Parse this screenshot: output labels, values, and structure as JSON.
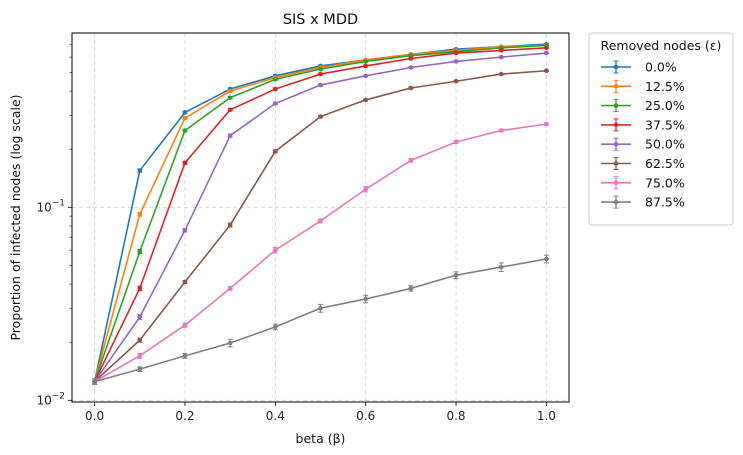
{
  "chart_data": {
    "type": "line",
    "title": "SIS x MDD",
    "xlabel": "beta (β)",
    "ylabel": "Proportion of infected nodes (log scale)",
    "yscale": "log",
    "xlim": [
      -0.05,
      1.05
    ],
    "ylim": [
      0.0098,
      0.8
    ],
    "grid": true,
    "x": [
      0.0,
      0.1,
      0.2,
      0.3,
      0.4,
      0.5,
      0.6,
      0.7,
      0.8,
      0.9,
      1.0
    ],
    "x_ticks": [
      "0.0",
      "0.2",
      "0.4",
      "0.6",
      "0.8",
      "1.0"
    ],
    "y_ticks": [
      {
        "base": "10",
        "exp": "−2"
      },
      {
        "base": "10",
        "exp": "−1"
      }
    ],
    "legend": {
      "title": "Removed nodes (ε)",
      "placement": "outside-right"
    },
    "series": [
      {
        "name": "0.0%",
        "color": "#1f77b4",
        "values": [
          0.0125,
          0.155,
          0.31,
          0.41,
          0.48,
          0.54,
          0.58,
          0.62,
          0.66,
          0.68,
          0.7
        ],
        "errors": [
          0.0004,
          0.003,
          0.004,
          0.005,
          0.005,
          0.005,
          0.005,
          0.005,
          0.005,
          0.005,
          0.005
        ]
      },
      {
        "name": "12.5%",
        "color": "#ff7f0e",
        "values": [
          0.0125,
          0.092,
          0.29,
          0.4,
          0.47,
          0.53,
          0.58,
          0.62,
          0.65,
          0.68,
          0.69
        ],
        "errors": [
          0.0004,
          0.002,
          0.004,
          0.005,
          0.005,
          0.005,
          0.005,
          0.005,
          0.005,
          0.005,
          0.005
        ]
      },
      {
        "name": "25.0%",
        "color": "#2ca02c",
        "values": [
          0.0125,
          0.059,
          0.25,
          0.37,
          0.46,
          0.52,
          0.57,
          0.61,
          0.64,
          0.67,
          0.69
        ],
        "errors": [
          0.0004,
          0.0015,
          0.004,
          0.005,
          0.005,
          0.005,
          0.005,
          0.005,
          0.005,
          0.005,
          0.005
        ]
      },
      {
        "name": "37.5%",
        "color": "#d62728",
        "values": [
          0.0125,
          0.038,
          0.17,
          0.32,
          0.41,
          0.49,
          0.54,
          0.59,
          0.63,
          0.65,
          0.67
        ],
        "errors": [
          0.0004,
          0.001,
          0.003,
          0.004,
          0.005,
          0.005,
          0.005,
          0.005,
          0.005,
          0.005,
          0.005
        ]
      },
      {
        "name": "50.0%",
        "color": "#9467bd",
        "values": [
          0.0125,
          0.027,
          0.076,
          0.235,
          0.345,
          0.43,
          0.48,
          0.53,
          0.57,
          0.6,
          0.63
        ],
        "errors": [
          0.0004,
          0.0008,
          0.0015,
          0.004,
          0.005,
          0.005,
          0.005,
          0.005,
          0.005,
          0.005,
          0.005
        ]
      },
      {
        "name": "62.5%",
        "color": "#8c564b",
        "values": [
          0.0125,
          0.0205,
          0.041,
          0.081,
          0.195,
          0.295,
          0.36,
          0.415,
          0.45,
          0.49,
          0.51
        ],
        "errors": [
          0.0004,
          0.0005,
          0.0008,
          0.002,
          0.003,
          0.004,
          0.004,
          0.004,
          0.004,
          0.004,
          0.004
        ]
      },
      {
        "name": "75.0%",
        "color": "#e377c2",
        "values": [
          0.0125,
          0.017,
          0.0245,
          0.038,
          0.06,
          0.085,
          0.124,
          0.175,
          0.218,
          0.25,
          0.27
        ],
        "errors": [
          0.0004,
          0.0005,
          0.0006,
          0.0008,
          0.002,
          0.002,
          0.004,
          0.004,
          0.004,
          0.004,
          0.004
        ]
      },
      {
        "name": "87.5%",
        "color": "#7f7f7f",
        "values": [
          0.0125,
          0.0145,
          0.017,
          0.0198,
          0.024,
          0.03,
          0.0335,
          0.038,
          0.0445,
          0.049,
          0.054
        ],
        "errors": [
          0.0004,
          0.0004,
          0.0005,
          0.0009,
          0.0008,
          0.0014,
          0.0015,
          0.0012,
          0.0018,
          0.0025,
          0.0025
        ]
      }
    ]
  }
}
